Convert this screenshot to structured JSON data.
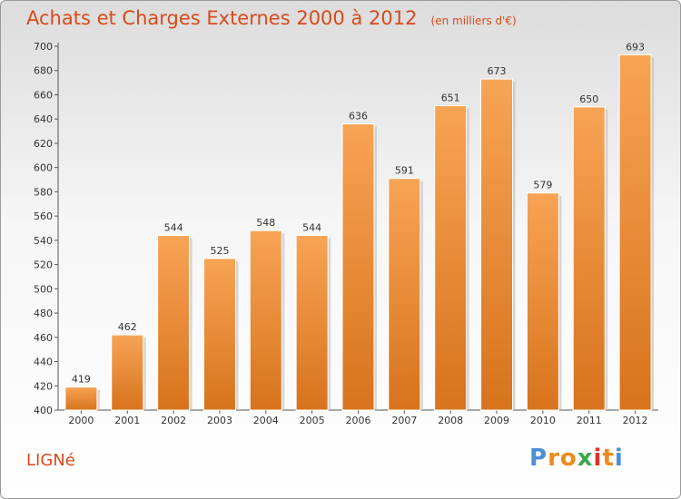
{
  "title": "Achats et Charges Externes 2000 à 2012",
  "unit": "(en milliers d'€)",
  "commune": "LIGNé",
  "logo": {
    "letters": [
      "P",
      "r",
      "o",
      "x",
      "i",
      "t",
      "i"
    ],
    "colors": [
      "#4a8fd6",
      "#f08a1c",
      "#f08a1c",
      "#3aa84a",
      "#d9342b",
      "#f08a1c",
      "#4a8fd6"
    ]
  },
  "colors": {
    "bar_top": "#f7a455",
    "bar_bottom": "#d8731c",
    "title": "#d84a1b"
  },
  "chart_data": {
    "type": "bar",
    "title": "Achats et Charges Externes 2000 à 2012",
    "subtitle": "(en milliers d'€)",
    "categories": [
      "2000",
      "2001",
      "2002",
      "2003",
      "2004",
      "2005",
      "2006",
      "2007",
      "2008",
      "2009",
      "2010",
      "2011",
      "2012"
    ],
    "values": [
      419,
      462,
      544,
      525,
      548,
      544,
      636,
      591,
      651,
      673,
      579,
      650,
      693
    ],
    "ylim": [
      400,
      700
    ],
    "yticks": [
      400,
      420,
      440,
      460,
      480,
      500,
      520,
      540,
      560,
      580,
      600,
      620,
      640,
      660,
      680,
      700
    ],
    "grid": false,
    "data_labels": true
  }
}
